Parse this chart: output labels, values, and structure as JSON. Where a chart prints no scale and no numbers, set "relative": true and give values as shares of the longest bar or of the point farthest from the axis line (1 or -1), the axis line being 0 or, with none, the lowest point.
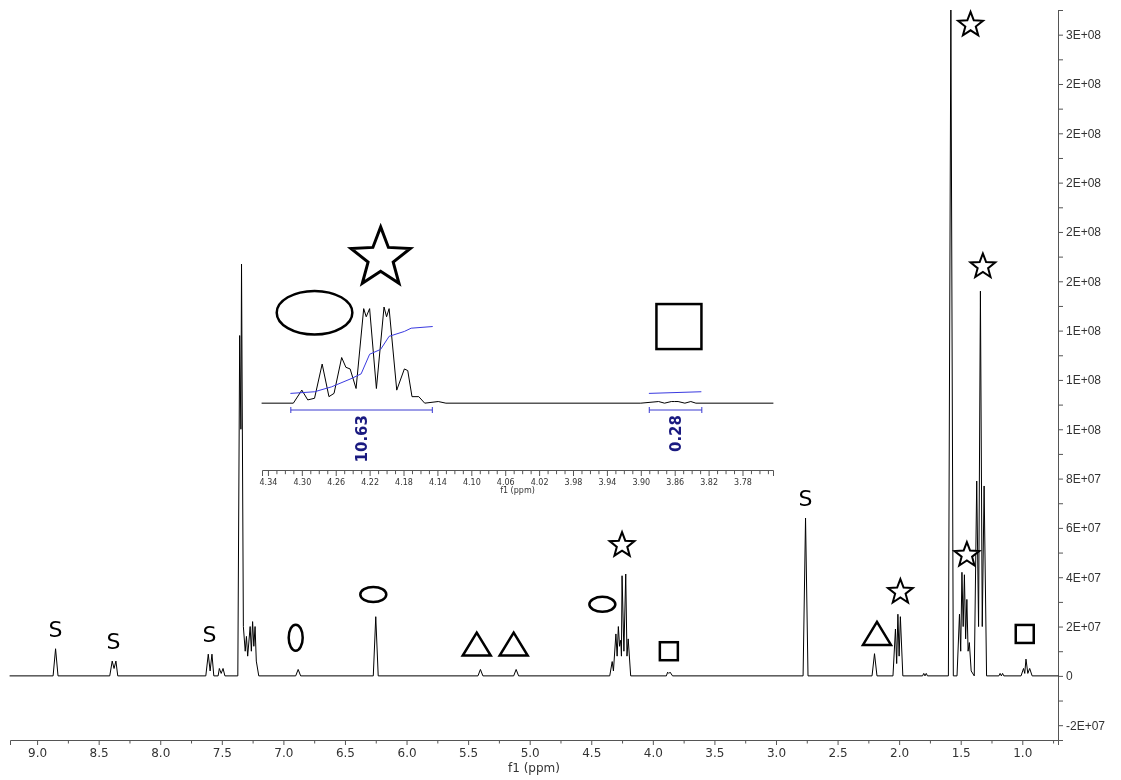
{
  "chart_data": [
    {
      "type": "line",
      "xlabel": "f1 (ppm)",
      "xlim": [
        9.22,
        0.71
      ],
      "ylim": [
        -26000000,
        270000000
      ],
      "xticks": [
        {
          "value": 9.0,
          "label": "9.0"
        },
        {
          "value": 8.75,
          "label": null
        },
        {
          "value": 8.5,
          "label": "8.5"
        },
        {
          "value": 8.25,
          "label": null
        },
        {
          "value": 8.0,
          "label": "8.0"
        },
        {
          "value": 7.75,
          "label": null
        },
        {
          "value": 7.5,
          "label": "7.5"
        },
        {
          "value": 7.25,
          "label": null
        },
        {
          "value": 7.0,
          "label": "7.0"
        },
        {
          "value": 6.75,
          "label": null
        },
        {
          "value": 6.5,
          "label": "6.5"
        },
        {
          "value": 6.25,
          "label": null
        },
        {
          "value": 6.0,
          "label": "6.0"
        },
        {
          "value": 5.75,
          "label": null
        },
        {
          "value": 5.5,
          "label": "5.5"
        },
        {
          "value": 5.25,
          "label": null
        },
        {
          "value": 5.0,
          "label": "5.0"
        },
        {
          "value": 4.75,
          "label": null
        },
        {
          "value": 4.5,
          "label": "4.5"
        },
        {
          "value": 4.25,
          "label": null
        },
        {
          "value": 4.0,
          "label": "4.0"
        },
        {
          "value": 3.75,
          "label": null
        },
        {
          "value": 3.5,
          "label": "3.5"
        },
        {
          "value": 3.25,
          "label": null
        },
        {
          "value": 3.0,
          "label": "3.0"
        },
        {
          "value": 2.75,
          "label": null
        },
        {
          "value": 2.5,
          "label": "2.5"
        },
        {
          "value": 2.25,
          "label": null
        },
        {
          "value": 2.0,
          "label": "2.0"
        },
        {
          "value": 1.75,
          "label": null
        },
        {
          "value": 1.5,
          "label": "1.5"
        },
        {
          "value": 1.25,
          "label": null
        },
        {
          "value": 1.0,
          "label": "1.0"
        },
        {
          "value": 0.75,
          "label": null
        }
      ],
      "yticks": [
        {
          "value": -20000000,
          "label": "-2E+07"
        },
        {
          "value": -10000000,
          "label": null
        },
        0,
        {
          "value": 10000000,
          "label": null
        },
        {
          "value": 20000000,
          "label": "2E+07"
        },
        {
          "value": 30000000,
          "label": null
        },
        {
          "value": 40000000,
          "label": "4E+07"
        },
        {
          "value": 50000000,
          "label": null
        },
        {
          "value": 60000000,
          "label": "6E+07"
        },
        {
          "value": 70000000,
          "label": null
        },
        {
          "value": 80000000,
          "label": "8E+07"
        },
        {
          "value": 90000000,
          "label": null
        },
        {
          "value": 100000000,
          "label": "1E+08"
        },
        {
          "value": 110000000,
          "label": null
        },
        {
          "value": 120000000,
          "label": "1E+08"
        },
        {
          "value": 130000000,
          "label": null
        },
        {
          "value": 140000000,
          "label": "1E+08"
        },
        {
          "value": 150000000,
          "label": null
        },
        {
          "value": 160000000,
          "label": "2E+08"
        },
        {
          "value": 170000000,
          "label": null
        },
        {
          "value": 180000000,
          "label": "2E+08"
        },
        {
          "value": 190000000,
          "label": null
        },
        {
          "value": 200000000,
          "label": "2E+08"
        },
        {
          "value": 210000000,
          "label": null
        },
        {
          "value": 220000000,
          "label": "2E+08"
        },
        {
          "value": 230000000,
          "label": null
        },
        {
          "value": 240000000,
          "label": "2E+08"
        },
        {
          "value": 250000000,
          "label": null
        },
        {
          "value": 260000000,
          "label": "3E+08"
        },
        {
          "value": 270000000,
          "label": null
        }
      ],
      "annotations": [
        {
          "text": "S",
          "x": 8.85,
          "y": 11000000
        },
        {
          "text": "S",
          "x": 8.38,
          "y": 6000000
        },
        {
          "text": "S",
          "x": 7.6,
          "y": 8800000
        },
        {
          "text": "S",
          "x": 2.76,
          "y": 64000000
        }
      ],
      "series": [
        {
          "color": "#000000",
          "x": [
            9.22,
            8.87,
            8.85,
            8.83,
            8.41,
            8.39,
            8.375,
            8.36,
            8.345,
            7.63,
            7.61,
            7.595,
            7.58,
            7.565,
            7.53,
            7.52,
            7.505,
            7.49,
            7.475,
            7.37,
            7.355,
            7.345,
            7.34,
            7.325,
            7.31,
            7.3,
            7.29,
            7.27,
            7.26,
            7.25,
            7.24,
            7.23,
            7.22,
            7.2,
            6.9,
            6.88,
            6.86,
            6.27,
            6.25,
            6.23,
            5.42,
            5.4,
            5.38,
            5.13,
            5.11,
            5.09,
            4.35,
            4.33,
            4.32,
            4.3,
            4.29,
            4.28,
            4.27,
            4.26,
            4.255,
            4.25,
            4.235,
            4.22,
            4.21,
            4.2,
            4.18,
            3.89,
            3.88,
            3.87,
            3.86,
            3.84,
            2.78,
            2.76,
            2.74,
            2.22,
            2.2,
            2.18,
            2.05,
            2.03,
            2.02,
            2.01,
            2.0,
            1.99,
            1.97,
            1.81,
            1.8,
            1.79,
            1.78,
            1.77,
            1.6,
            1.58,
            1.56,
            1.53,
            1.51,
            1.5,
            1.49,
            1.48,
            1.47,
            1.46,
            1.45,
            1.44,
            1.43,
            1.415,
            1.39,
            1.37,
            1.355,
            1.34,
            1.325,
            1.31,
            1.29,
            1.19,
            1.18,
            1.17,
            1.16,
            1.15,
            1.01,
            0.99,
            0.98,
            0.97,
            0.955,
            0.94,
            0.92,
            0.71
          ],
          "values": [
            0,
            0,
            11000000,
            0,
            0,
            6000000,
            3000000,
            6000000,
            0,
            0,
            8800000,
            2000000,
            8800000,
            0,
            0,
            3000000,
            1000000,
            3000000,
            0,
            0,
            138000000,
            100000000,
            167000000,
            20000000,
            10000000,
            16000000,
            8000000,
            20000000,
            10000000,
            22000000,
            12000000,
            20000000,
            6000000,
            0,
            0,
            2600000,
            0,
            0,
            24000000,
            0,
            0,
            2600000,
            0,
            0,
            2600000,
            0,
            0,
            5800000,
            2000000,
            17000000,
            8000000,
            20000000,
            12000000,
            14500000,
            8000000,
            40600000,
            10000000,
            41300000,
            8000000,
            15000000,
            0,
            0,
            1500000,
            1000000,
            1500000,
            0,
            0,
            64000000,
            0,
            0,
            9000000,
            0,
            0,
            19000000,
            5000000,
            25000000,
            8000000,
            24000000,
            0,
            0,
            1000000,
            0,
            1000000,
            0,
            0,
            270000000,
            0,
            0,
            25000000,
            10000000,
            42000000,
            20000000,
            41000000,
            15000000,
            31000000,
            10000000,
            13500000,
            2000000,
            0,
            79000000,
            20000000,
            156000000,
            20000000,
            77000000,
            0,
            0,
            1000000,
            0,
            1000000,
            0,
            0,
            3000000,
            1000000,
            6800000,
            1000000,
            3000000,
            0,
            0
          ]
        }
      ]
    },
    {
      "type": "line",
      "relative": true,
      "xlabel": "f1 (ppm)",
      "xlim": [
        4.347,
        3.744
      ],
      "xticks": [
        {
          "value": 4.34,
          "label": "4.34"
        },
        {
          "value": 4.33,
          "label": null
        },
        {
          "value": 4.32,
          "label": null
        },
        {
          "value": 4.31,
          "label": null
        },
        {
          "value": 4.3,
          "label": "4.30"
        },
        {
          "value": 4.29,
          "label": null
        },
        {
          "value": 4.28,
          "label": null
        },
        {
          "value": 4.27,
          "label": null
        },
        {
          "value": 4.26,
          "label": "4.26"
        },
        {
          "value": 4.25,
          "label": null
        },
        {
          "value": 4.24,
          "label": null
        },
        {
          "value": 4.23,
          "label": null
        },
        {
          "value": 4.22,
          "label": "4.22"
        },
        {
          "value": 4.21,
          "label": null
        },
        {
          "value": 4.2,
          "label": null
        },
        {
          "value": 4.19,
          "label": null
        },
        {
          "value": 4.18,
          "label": "4.18"
        },
        {
          "value": 4.17,
          "label": null
        },
        {
          "value": 4.16,
          "label": null
        },
        {
          "value": 4.15,
          "label": null
        },
        {
          "value": 4.14,
          "label": "4.14"
        },
        {
          "value": 4.13,
          "label": null
        },
        {
          "value": 4.12,
          "label": null
        },
        {
          "value": 4.11,
          "label": null
        },
        {
          "value": 4.1,
          "label": "4.10"
        },
        {
          "value": 4.09,
          "label": null
        },
        {
          "value": 4.08,
          "label": null
        },
        {
          "value": 4.07,
          "label": null
        },
        {
          "value": 4.06,
          "label": "4.06"
        },
        {
          "value": 4.05,
          "label": null
        },
        {
          "value": 4.04,
          "label": null
        },
        {
          "value": 4.03,
          "label": null
        },
        {
          "value": 4.02,
          "label": "4.02"
        },
        {
          "value": 4.01,
          "label": null
        },
        {
          "value": 4.0,
          "label": null
        },
        {
          "value": 3.99,
          "label": null
        },
        {
          "value": 3.98,
          "label": "3.98"
        },
        {
          "value": 3.97,
          "label": null
        },
        {
          "value": 3.96,
          "label": null
        },
        {
          "value": 3.95,
          "label": null
        },
        {
          "value": 3.94,
          "label": "3.94"
        },
        {
          "value": 3.93,
          "label": null
        },
        {
          "value": 3.92,
          "label": null
        },
        {
          "value": 3.91,
          "label": null
        },
        {
          "value": 3.9,
          "label": "3.90"
        },
        {
          "value": 3.89,
          "label": null
        },
        {
          "value": 3.88,
          "label": null
        },
        {
          "value": 3.87,
          "label": null
        },
        {
          "value": 3.86,
          "label": "3.86"
        },
        {
          "value": 3.85,
          "label": null
        },
        {
          "value": 3.84,
          "label": null
        },
        {
          "value": 3.83,
          "label": null
        },
        {
          "value": 3.82,
          "label": "3.82"
        },
        {
          "value": 3.81,
          "label": null
        },
        {
          "value": 3.8,
          "label": null
        },
        {
          "value": 3.79,
          "label": null
        },
        {
          "value": 3.78,
          "label": "3.78"
        },
        {
          "value": 3.77,
          "label": null
        },
        {
          "value": 3.76,
          "label": null
        },
        {
          "value": 3.75,
          "label": null
        }
      ],
      "annotations": [
        "10.63",
        "0.28"
      ],
      "series": [
        {
          "color": "#000000",
          "x": [
            4.347,
            4.31,
            4.3,
            4.293,
            4.285,
            4.276,
            4.268,
            4.262,
            4.253,
            4.248,
            4.243,
            4.236,
            4.227,
            4.224,
            4.22,
            4.212,
            4.203,
            4.2,
            4.197,
            4.188,
            4.179,
            4.175,
            4.17,
            4.162,
            4.155,
            4.139,
            4.13,
            3.9,
            3.879,
            3.872,
            3.864,
            3.86,
            3.856,
            3.848,
            3.841,
            3.835,
            3.744
          ],
          "values": [
            0.41,
            0.41,
            0.49,
            0.43,
            0.44,
            0.65,
            0.45,
            0.47,
            0.69,
            0.63,
            0.62,
            0.5,
            0.99,
            0.94,
            0.99,
            0.5,
            1,
            0.94,
            0.99,
            0.49,
            0.62,
            0.61,
            0.45,
            0.45,
            0.41,
            0.42,
            0.41,
            0.41,
            0.42,
            0.41,
            0.42,
            0.42,
            0.42,
            0.41,
            0.42,
            0.41,
            0.41
          ]
        },
        {
          "color": "#3a3ae0",
          "x": [
            4.313,
            4.285,
            4.265,
            4.242,
            4.23,
            4.22,
            4.207,
            4.197,
            4.179,
            4.171,
            4.146
          ],
          "values": [
            0.47,
            0.48,
            0.51,
            0.56,
            0.59,
            0.71,
            0.74,
            0.82,
            0.85,
            0.87,
            0.88
          ]
        },
        {
          "color": "#3a3ae0",
          "x": [
            3.89,
            3.829
          ],
          "values": [
            0.47,
            0.48
          ]
        }
      ]
    }
  ]
}
